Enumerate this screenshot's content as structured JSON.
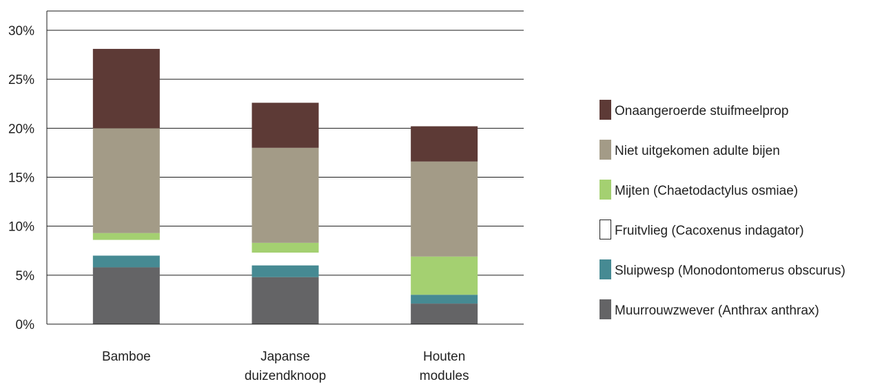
{
  "chart_data": {
    "type": "bar",
    "stacked": true,
    "categories": [
      [
        "Bamboe"
      ],
      [
        "Japanse",
        "duizendknoop"
      ],
      [
        "Houten",
        "modules"
      ]
    ],
    "ylim": [
      0,
      30
    ],
    "ytick_values": [
      0,
      5,
      10,
      15,
      20,
      25,
      30
    ],
    "ytick_labels": [
      "0%",
      "5%",
      "10%",
      "15%",
      "20%",
      "25%",
      "30%"
    ],
    "grid": true,
    "legend_position": "right",
    "series": [
      {
        "name": "Muurrouwzwever (Anthrax anthrax)",
        "color": "#646466",
        "values": [
          5.8,
          4.8,
          2.1
        ]
      },
      {
        "name": "Sluipwesp (Monodontomerus obscurus)",
        "color": "#468a93",
        "values": [
          1.2,
          1.2,
          0.9
        ]
      },
      {
        "name": "Fruitvlieg (Cacoxenus indagator)",
        "color": "#ffffff",
        "values": [
          1.6,
          1.3,
          0.0
        ]
      },
      {
        "name": "Mijten (Chaetodactylus osmiae)",
        "color": "#a4d071",
        "values": [
          0.7,
          1.0,
          3.9
        ]
      },
      {
        "name": "Niet uitgekomen adulte bijen",
        "color": "#a39b87",
        "values": [
          10.7,
          9.7,
          9.7
        ]
      },
      {
        "name": "Onaangeroerde stuifmeelprop",
        "color": "#5d3a36",
        "values": [
          8.1,
          4.6,
          3.6
        ]
      }
    ],
    "legend_order": [
      5,
      4,
      3,
      2,
      1,
      0
    ]
  }
}
